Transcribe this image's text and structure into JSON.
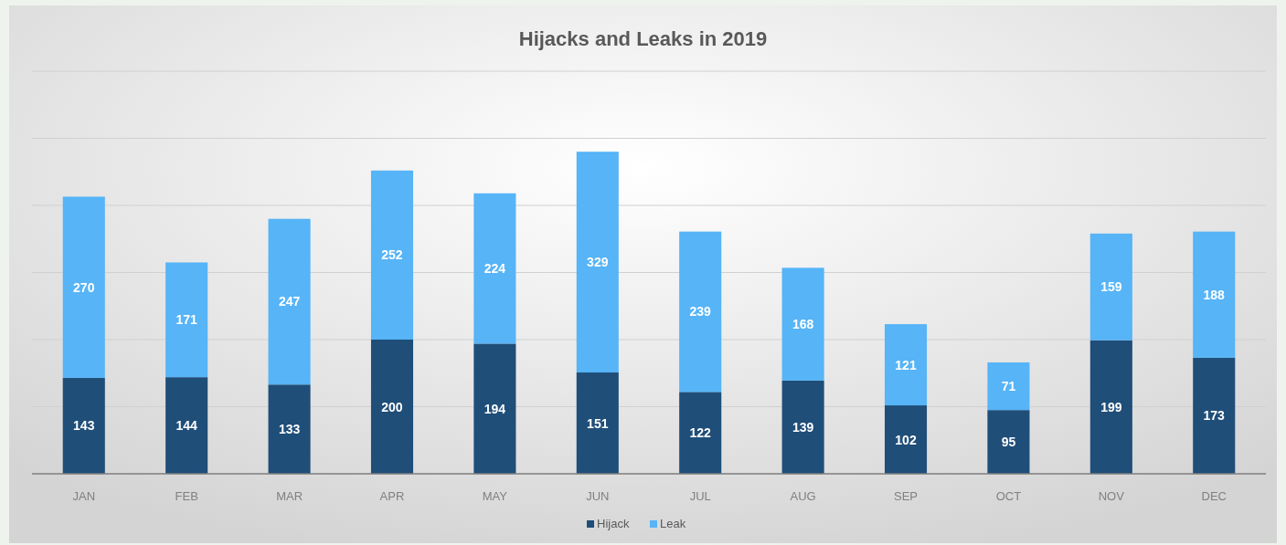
{
  "chart_data": {
    "type": "bar",
    "title": "Hijacks and Leaks in 2019",
    "categories": [
      "JAN",
      "FEB",
      "MAR",
      "APR",
      "MAY",
      "JUN",
      "JUL",
      "AUG",
      "SEP",
      "OCT",
      "NOV",
      "DEC"
    ],
    "series": [
      {
        "name": "Hijack",
        "color": "#1f4e79",
        "values": [
          143,
          144,
          133,
          200,
          194,
          151,
          122,
          139,
          102,
          95,
          199,
          173
        ]
      },
      {
        "name": "Leak",
        "color": "#56b4f7",
        "values": [
          270,
          171,
          247,
          252,
          224,
          329,
          239,
          168,
          121,
          71,
          159,
          188
        ]
      }
    ],
    "stacked": true,
    "data_labels": true,
    "ylim": [
      0,
      600
    ],
    "yticks": [
      {
        "value": 0,
        "label": null
      },
      {
        "value": 100,
        "label": null
      },
      {
        "value": 200,
        "label": null
      },
      {
        "value": 300,
        "label": null
      },
      {
        "value": 400,
        "label": null
      },
      {
        "value": 500,
        "label": null
      },
      {
        "value": 600,
        "label": null
      }
    ],
    "grid": "y",
    "tick_labels": "x",
    "legend": "bottom"
  }
}
